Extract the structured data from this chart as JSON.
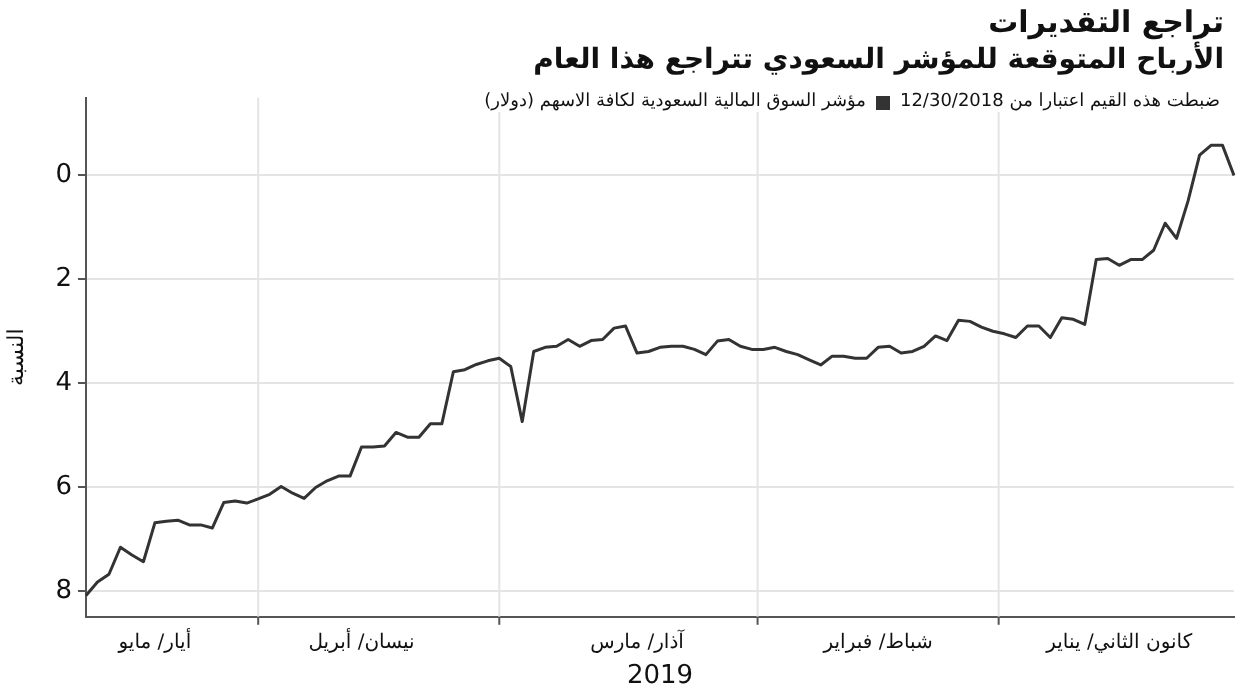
{
  "chart_data": {
    "type": "line",
    "title": "تراجع التقديرات",
    "subtitle": "الأرباح المتوقعة للمؤشر السعودي تتراجع هذا العام",
    "xlabel": "2019",
    "ylabel": "النسبة",
    "legend_title": "ضبطت هذه القيم اعتبارا من 12/30/2018",
    "legend": "top right",
    "grid": true,
    "marker": "none",
    "line_style": "solid",
    "categories": [
      null,
      null,
      null,
      null,
      null,
      null,
      "أيار/ مايو",
      null,
      null,
      null,
      null,
      null,
      null,
      null,
      null,
      null,
      null,
      null,
      null,
      null,
      null,
      null,
      null,
      null,
      "نيسان/ أبريل",
      null,
      null,
      null,
      null,
      null,
      null,
      null,
      null,
      null,
      null,
      null,
      null,
      null,
      null,
      null,
      null,
      null,
      null,
      null,
      null,
      null,
      null,
      null,
      "آذار/ مارس",
      null,
      null,
      null,
      null,
      null,
      null,
      null,
      null,
      null,
      null,
      null,
      null,
      null,
      null,
      null,
      null,
      null,
      null,
      null,
      null,
      "شباط/ فبراير",
      null,
      null,
      null,
      null,
      null,
      null,
      null,
      null,
      null,
      null,
      null,
      null,
      null,
      null,
      null,
      null,
      null,
      null,
      null,
      null,
      "كانون الثاني/ يناير",
      null,
      null,
      null,
      null,
      null,
      null,
      null,
      null,
      null,
      null
    ],
    "ylim": [
      8.5,
      -1.5
    ],
    "yticks": [
      0,
      2,
      4,
      6,
      8
    ],
    "series": [
      {
        "name": "مؤشر السوق المالية السعودية لكافة الاسهم (دولار)",
        "color": "#333333",
        "values": [
          8.09,
          7.83,
          7.68,
          7.16,
          7.31,
          7.44,
          6.69,
          6.66,
          6.64,
          6.73,
          6.73,
          6.79,
          6.3,
          6.27,
          6.31,
          6.23,
          6.14,
          5.99,
          6.12,
          6.22,
          6.01,
          5.88,
          5.79,
          5.79,
          5.23,
          5.23,
          5.21,
          4.95,
          5.04,
          5.04,
          4.78,
          4.78,
          3.78,
          3.74,
          3.64,
          3.57,
          3.52,
          3.68,
          4.74,
          3.39,
          3.31,
          3.29,
          3.16,
          3.29,
          3.18,
          3.16,
          2.94,
          2.9,
          3.42,
          3.39,
          3.31,
          3.29,
          3.29,
          3.35,
          3.45,
          3.19,
          3.16,
          3.29,
          3.35,
          3.35,
          3.31,
          3.39,
          3.45,
          3.55,
          3.65,
          3.48,
          3.48,
          3.52,
          3.52,
          3.31,
          3.29,
          3.42,
          3.39,
          3.29,
          3.09,
          3.18,
          2.79,
          2.81,
          2.92,
          3.0,
          3.05,
          3.12,
          2.9,
          2.9,
          3.12,
          2.74,
          2.77,
          2.87,
          1.62,
          1.6,
          1.73,
          1.62,
          1.62,
          1.44,
          0.92,
          1.21,
          0.49,
          -0.39,
          -0.58,
          -0.58,
          0
        ]
      }
    ]
  }
}
